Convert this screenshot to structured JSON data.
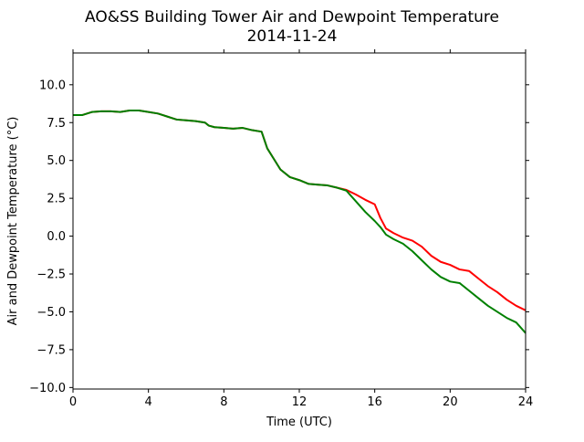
{
  "chart_data": {
    "type": "line",
    "title": [
      "AO&SS Building Tower Air and Dewpoint Temperature",
      "2014-11-24"
    ],
    "xlabel": "Time (UTC)",
    "ylabel": "Air and Dewpoint Temperature (°C)",
    "xlim": [
      0,
      24
    ],
    "ylim": [
      -10.1,
      12.1
    ],
    "xticks": [
      0,
      4,
      8,
      12,
      16,
      20,
      24
    ],
    "xtick_labels": [
      "0",
      "4",
      "8",
      "12",
      "16",
      "20",
      "24"
    ],
    "yticks": [
      -10.0,
      -7.5,
      -5.0,
      -2.5,
      0.0,
      2.5,
      5.0,
      7.5,
      10.0
    ],
    "ytick_labels": [
      "−10.0",
      "−7.5",
      "−5.0",
      "−2.5",
      "0.0",
      "2.5",
      "5.0",
      "7.5",
      "10.0"
    ],
    "grid": false,
    "series": [
      {
        "key": "air",
        "color": "#ff0000",
        "x": [
          0,
          0.5,
          1,
          1.5,
          2,
          2.5,
          3,
          3.5,
          4,
          4.5,
          5,
          5.5,
          6,
          6.5,
          7,
          7.2,
          7.5,
          8,
          8.5,
          9,
          9.5,
          10,
          10.3,
          10.6,
          11,
          11.5,
          12,
          12.5,
          13,
          13.5,
          14,
          14.5,
          15,
          15.5,
          16,
          16.3,
          16.6,
          17,
          17.5,
          18,
          18.5,
          19,
          19.5,
          20,
          20.5,
          21,
          21.5,
          22,
          22.5,
          23,
          23.5,
          24
        ],
        "y": [
          8.0,
          8.0,
          8.2,
          8.25,
          8.25,
          8.2,
          8.3,
          8.3,
          8.2,
          8.1,
          7.9,
          7.7,
          7.65,
          7.6,
          7.5,
          7.3,
          7.2,
          7.15,
          7.1,
          7.15,
          7.0,
          6.9,
          5.8,
          5.2,
          4.4,
          3.9,
          3.7,
          3.45,
          3.4,
          3.35,
          3.2,
          3.05,
          2.75,
          2.4,
          2.1,
          1.2,
          0.5,
          0.2,
          -0.1,
          -0.3,
          -0.7,
          -1.3,
          -1.7,
          -1.9,
          -2.2,
          -2.3,
          -2.8,
          -3.3,
          -3.7,
          -4.2,
          -4.6,
          -4.9
        ]
      },
      {
        "key": "dewpoint",
        "color": "#008000",
        "x": [
          0,
          0.5,
          1,
          1.5,
          2,
          2.5,
          3,
          3.5,
          4,
          4.5,
          5,
          5.5,
          6,
          6.5,
          7,
          7.2,
          7.5,
          8,
          8.5,
          9,
          9.5,
          10,
          10.3,
          10.6,
          11,
          11.5,
          12,
          12.5,
          13,
          13.5,
          14,
          14.5,
          15,
          15.5,
          16,
          16.3,
          16.6,
          17,
          17.5,
          18,
          18.5,
          19,
          19.5,
          20,
          20.5,
          21,
          21.5,
          22,
          22.5,
          23,
          23.5,
          24
        ],
        "y": [
          8.0,
          8.0,
          8.2,
          8.25,
          8.25,
          8.2,
          8.3,
          8.3,
          8.2,
          8.1,
          7.9,
          7.7,
          7.65,
          7.6,
          7.5,
          7.3,
          7.2,
          7.15,
          7.1,
          7.15,
          7.0,
          6.9,
          5.8,
          5.2,
          4.4,
          3.9,
          3.7,
          3.45,
          3.4,
          3.35,
          3.2,
          3.0,
          2.3,
          1.6,
          1.0,
          0.6,
          0.1,
          -0.2,
          -0.5,
          -1.0,
          -1.6,
          -2.2,
          -2.7,
          -3.0,
          -3.1,
          -3.6,
          -4.1,
          -4.6,
          -5.0,
          -5.4,
          -5.7,
          -6.4
        ]
      }
    ]
  }
}
